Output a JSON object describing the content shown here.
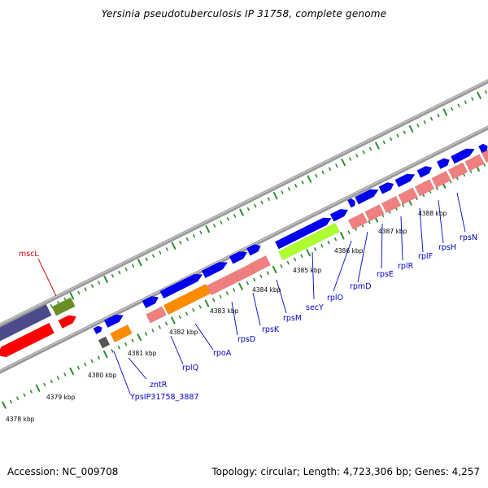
{
  "title": "Yersinia pseudotuberculosis IP 31758, complete genome",
  "footer": {
    "accession": "Accession: NC_009708",
    "summary": "Topology: circular; Length: 4,723,306 bp; Genes: 4,257"
  },
  "colors": {
    "backbone": "#9a9a9a",
    "tick": "#2e8b2e",
    "forward_cds": "#0000ee",
    "reverse_cds": "#ff0000",
    "rrna_like": "#f08080",
    "olive": "#6b8e23",
    "slate": "#4b4b8c",
    "orange": "#ff8c00",
    "lime": "#adff2f",
    "gray": "#555555",
    "label_blue": "#0000cc",
    "label_red": "#cc0000"
  },
  "kbp_labels": [
    "4378 kbp",
    "4379 kbp",
    "4380 kbp",
    "4381 kbp",
    "4382 kbp",
    "4383 kbp",
    "4384 kbp",
    "4385 kbp",
    "4386 kbp",
    "4387 kbp",
    "4388 kbp"
  ],
  "gene_labels": [
    {
      "text": "mscL",
      "color": "red"
    },
    {
      "text": "zntR",
      "color": "blue"
    },
    {
      "text": "YpsIP31758_3887",
      "color": "blue"
    },
    {
      "text": "rplQ",
      "color": "blue"
    },
    {
      "text": "rpoA",
      "color": "blue"
    },
    {
      "text": "rpsD",
      "color": "blue"
    },
    {
      "text": "rpsK",
      "color": "blue"
    },
    {
      "text": "rpsM",
      "color": "blue"
    },
    {
      "text": "secY",
      "color": "blue"
    },
    {
      "text": "rplO",
      "color": "blue"
    },
    {
      "text": "rpmD",
      "color": "blue"
    },
    {
      "text": "rpsE",
      "color": "blue"
    },
    {
      "text": "rplR",
      "color": "blue"
    },
    {
      "text": "rplF",
      "color": "blue"
    },
    {
      "text": "rpsH",
      "color": "blue"
    },
    {
      "text": "rpsN",
      "color": "blue"
    }
  ]
}
